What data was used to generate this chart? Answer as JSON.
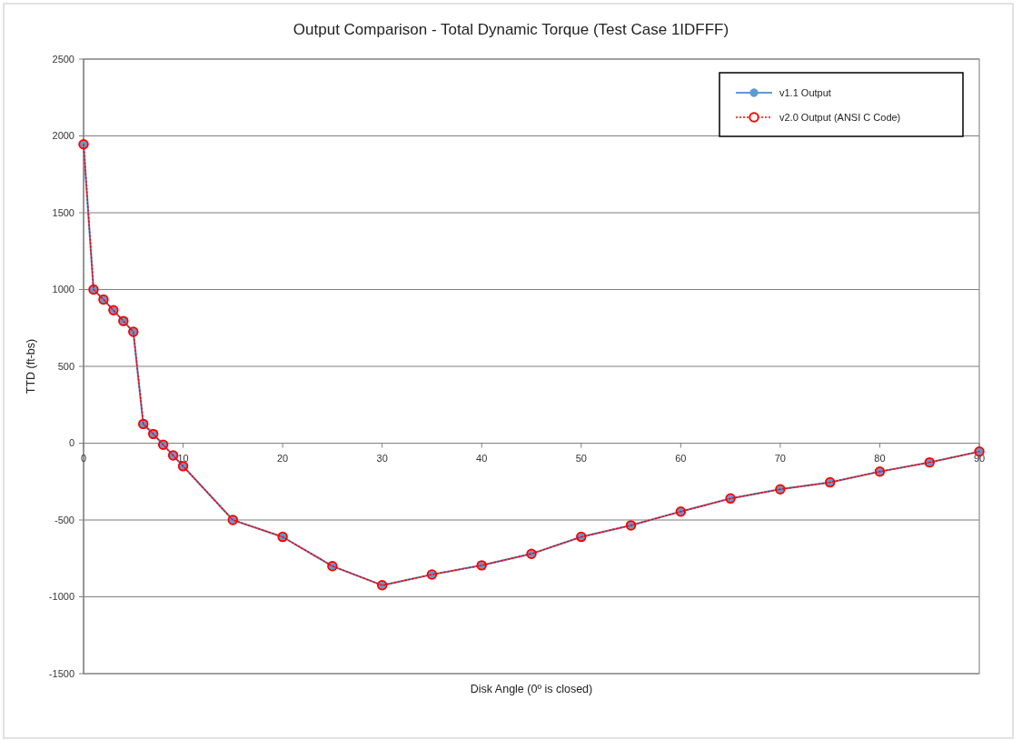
{
  "chart_data": {
    "type": "line",
    "title": "Output Comparison - Total Dynamic Torque (Test Case 1IDFFF)",
    "xlabel": "Disk Angle (0º is closed)",
    "ylabel": "TTD (ft-bs)",
    "x": [
      0,
      1,
      2,
      3,
      4,
      5,
      6,
      7,
      8,
      9,
      10,
      15,
      20,
      25,
      30,
      35,
      40,
      45,
      50,
      55,
      60,
      65,
      70,
      75,
      80,
      85,
      90
    ],
    "series": [
      {
        "name": "v1.1 Output",
        "color": "#5b9bd5",
        "values": [
          1945,
          1000,
          935,
          865,
          795,
          725,
          125,
          60,
          -10,
          -80,
          -150,
          -500,
          -610,
          -800,
          -925,
          -855,
          -795,
          -720,
          -610,
          -535,
          -445,
          -360,
          -300,
          -255,
          -185,
          -125,
          -55
        ]
      },
      {
        "name": "v2.0 Output (ANSI C Code)",
        "color": "#ff0000",
        "line_style": "dotted",
        "values": [
          1945,
          1000,
          935,
          865,
          795,
          725,
          125,
          60,
          -10,
          -80,
          -150,
          -500,
          -610,
          -800,
          -925,
          -855,
          -795,
          -720,
          -610,
          -535,
          -445,
          -360,
          -300,
          -255,
          -185,
          -125,
          -55
        ]
      }
    ],
    "xlim": [
      0,
      90
    ],
    "ylim": [
      -1500,
      2500
    ],
    "xticks": [
      0,
      10,
      20,
      30,
      40,
      50,
      60,
      70,
      80,
      90
    ],
    "yticks": [
      -1500,
      -1000,
      -500,
      0,
      500,
      1000,
      1500,
      2000,
      2500
    ],
    "grid": "y",
    "legend": "top right",
    "marker": "circle",
    "line_style": "solid"
  }
}
